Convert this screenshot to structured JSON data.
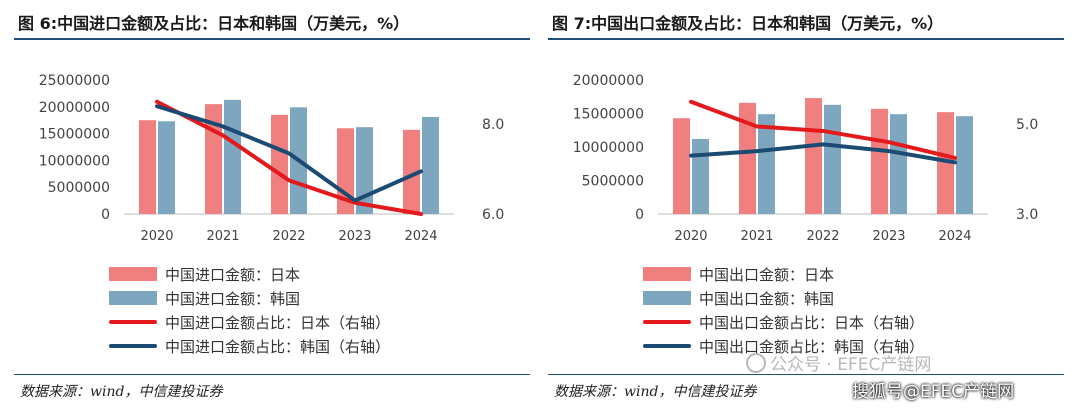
{
  "charts": [
    {
      "title": "图 6:中国进口金额及占比：日本和韩国（万美元，%）",
      "source": "数据来源：wind，中信建投证券"
    },
    {
      "title": "图 7:中国出口金额及占比：日本和韩国（万美元，%）",
      "source": "数据来源：wind，中信建投证券"
    }
  ],
  "watermark": {
    "line1": "公众号 · EFEC产链网",
    "line2": "搜狐号@EFEC产链网"
  },
  "colors": {
    "bar_japan": "#f08080",
    "bar_korea": "#7fa6bf",
    "line_japan": "#e3191c",
    "line_korea": "#1b4b72"
  },
  "chart_data": [
    {
      "type": "bar",
      "categories": [
        "2020",
        "2021",
        "2022",
        "2023",
        "2024"
      ],
      "ylim": [
        0,
        25000000
      ],
      "yticks": [
        "25000000",
        "20000000",
        "15000000",
        "10000000",
        "5000000",
        "0"
      ],
      "y2lim": [
        6.0,
        8.0
      ],
      "y2ticks": [
        "8.0",
        "6.0"
      ],
      "series": [
        {
          "name": "中国进口金额：日本",
          "kind": "bar",
          "axis": "left",
          "color": "#f08080",
          "values": [
            17500000,
            20500000,
            18500000,
            16000000,
            15700000
          ]
        },
        {
          "name": "中国进口金额：韩国",
          "kind": "bar",
          "axis": "left",
          "color": "#7fa6bf",
          "values": [
            17300000,
            21300000,
            19900000,
            16200000,
            18100000
          ]
        },
        {
          "name": "中国进口金额占比：日本（右轴）",
          "kind": "line",
          "axis": "right",
          "color": "#e3191c",
          "values": [
            8.5,
            7.75,
            6.75,
            6.25,
            6.0
          ]
        },
        {
          "name": "中国进口金额占比：韩国（右轴）",
          "kind": "line",
          "axis": "right",
          "color": "#1b4b72",
          "values": [
            8.4,
            7.95,
            7.35,
            6.3,
            6.95
          ]
        }
      ]
    },
    {
      "type": "bar",
      "categories": [
        "2020",
        "2021",
        "2022",
        "2023",
        "2024"
      ],
      "ylim": [
        0,
        20000000
      ],
      "yticks": [
        "20000000",
        "15000000",
        "10000000",
        "5000000",
        "0"
      ],
      "y2lim": [
        3.0,
        5.0
      ],
      "y2ticks": [
        "5.0",
        "3.0"
      ],
      "series": [
        {
          "name": "中国出口金额：日本",
          "kind": "bar",
          "axis": "left",
          "color": "#f08080",
          "values": [
            14300000,
            16600000,
            17300000,
            15700000,
            15200000
          ]
        },
        {
          "name": "中国出口金额：韩国",
          "kind": "bar",
          "axis": "left",
          "color": "#7fa6bf",
          "values": [
            11200000,
            14900000,
            16300000,
            14900000,
            14600000
          ]
        },
        {
          "name": "中国出口金额占比：日本（右轴）",
          "kind": "line",
          "axis": "right",
          "color": "#e3191c",
          "values": [
            5.5,
            4.95,
            4.85,
            4.6,
            4.25
          ]
        },
        {
          "name": "中国出口金额占比：韩国（右轴）",
          "kind": "line",
          "axis": "right",
          "color": "#1b4b72",
          "values": [
            4.3,
            4.4,
            4.55,
            4.4,
            4.15
          ]
        }
      ]
    }
  ]
}
